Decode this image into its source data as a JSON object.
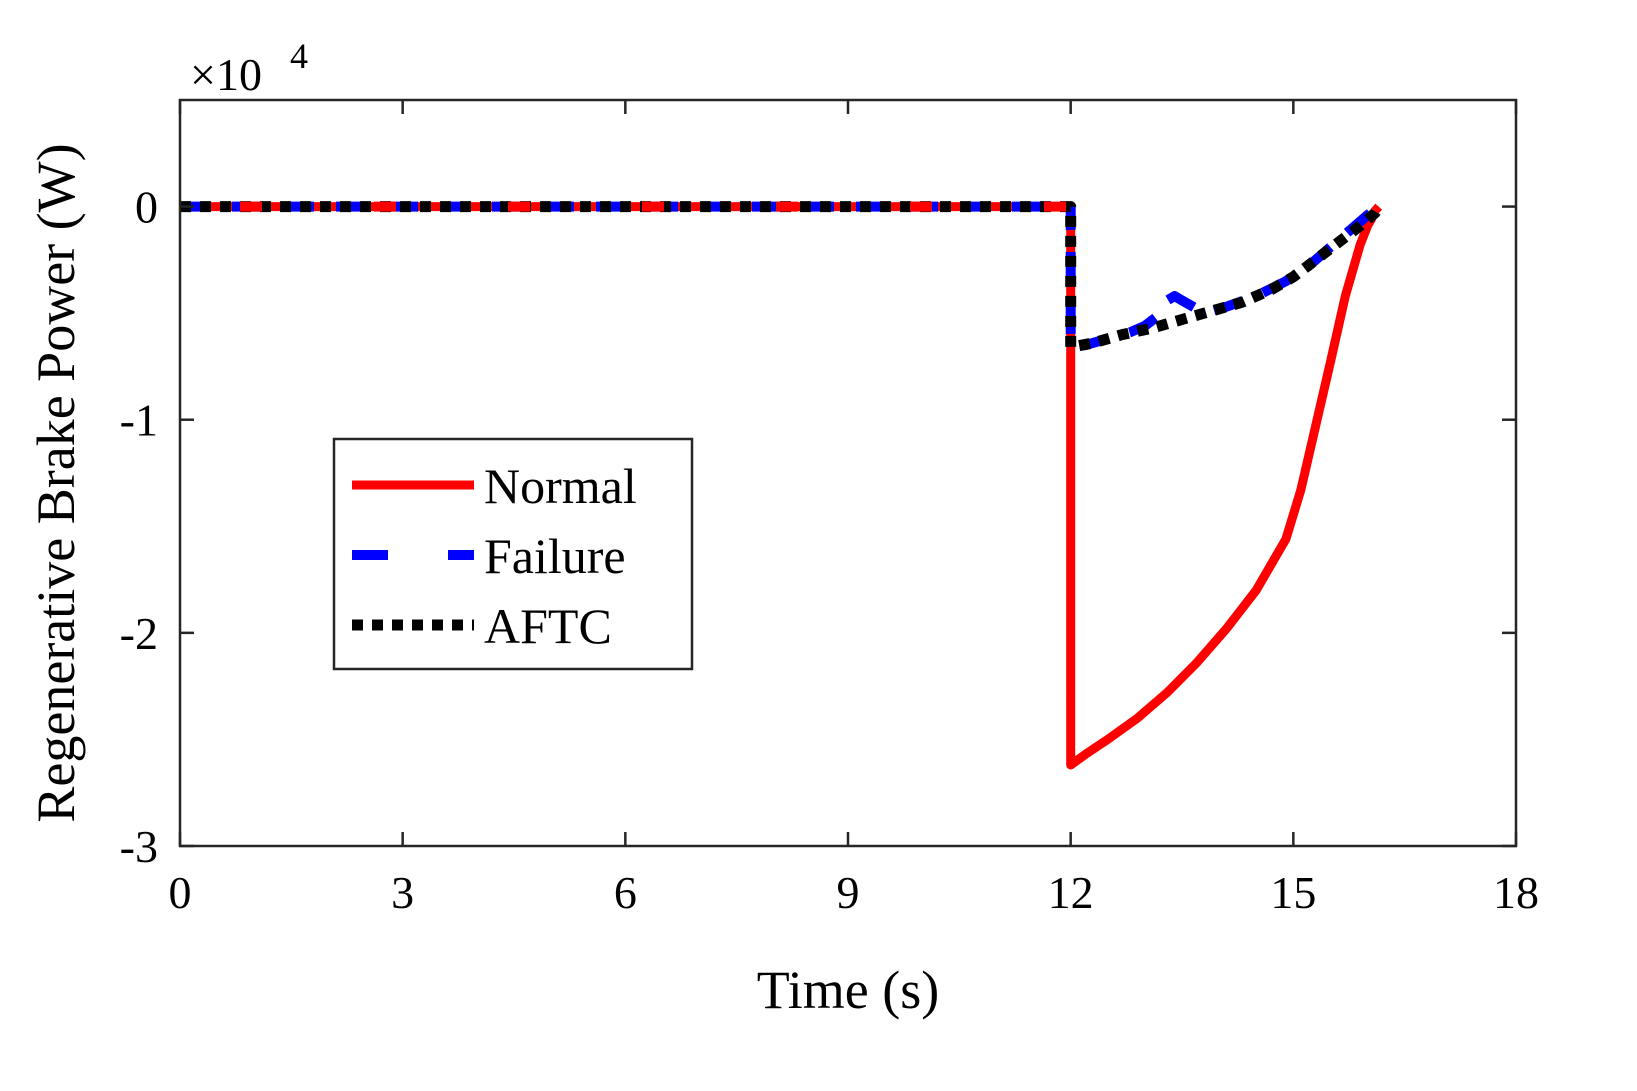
{
  "chart_data": {
    "type": "line",
    "title": "",
    "xlabel": "Time (s)",
    "ylabel": "Regenerative Brake Power (W)",
    "xlim": [
      0,
      18
    ],
    "ylim": [
      -3,
      0.5
    ],
    "y_multiplier_label": "×10",
    "y_multiplier_exponent": "4",
    "xticks": [
      0,
      3,
      6,
      9,
      12,
      15,
      18
    ],
    "xtick_labels": [
      "0",
      "3",
      "6",
      "9",
      "12",
      "15",
      "18"
    ],
    "yticks": [
      0,
      -1,
      -2,
      -3
    ],
    "ytick_labels": [
      "0",
      "-1",
      "-2",
      "-3"
    ],
    "legend_position": "left-center",
    "series": [
      {
        "name": "Normal",
        "color": "#ff0000",
        "style": "solid",
        "points": [
          [
            0,
            0
          ],
          [
            12.0,
            0
          ],
          [
            12.0,
            -2.62
          ],
          [
            12.2,
            -2.57
          ],
          [
            12.5,
            -2.5
          ],
          [
            12.9,
            -2.4
          ],
          [
            13.3,
            -2.28
          ],
          [
            13.7,
            -2.14
          ],
          [
            14.1,
            -1.98
          ],
          [
            14.5,
            -1.8
          ],
          [
            14.9,
            -1.56
          ],
          [
            15.1,
            -1.33
          ],
          [
            15.3,
            -1.03
          ],
          [
            15.5,
            -0.73
          ],
          [
            15.7,
            -0.42
          ],
          [
            15.9,
            -0.18
          ],
          [
            16.0,
            -0.09
          ],
          [
            16.05,
            -0.06
          ],
          [
            16.1,
            -0.02
          ],
          [
            16.15,
            0
          ]
        ]
      },
      {
        "name": "Failure",
        "color": "#0000ff",
        "style": "dashed",
        "points": [
          [
            0,
            0
          ],
          [
            12.0,
            0
          ],
          [
            12.0,
            -0.66
          ],
          [
            12.2,
            -0.65
          ],
          [
            12.5,
            -0.62
          ],
          [
            12.8,
            -0.59
          ],
          [
            13.0,
            -0.56
          ],
          [
            13.15,
            -0.52
          ],
          [
            13.3,
            -0.44
          ],
          [
            13.4,
            -0.42
          ],
          [
            13.5,
            -0.44
          ],
          [
            13.8,
            -0.5
          ],
          [
            14.1,
            -0.47
          ],
          [
            14.5,
            -0.42
          ],
          [
            14.9,
            -0.35
          ],
          [
            15.2,
            -0.28
          ],
          [
            15.5,
            -0.19
          ],
          [
            15.8,
            -0.1
          ],
          [
            16.0,
            -0.04
          ],
          [
            16.15,
            0
          ]
        ]
      },
      {
        "name": "AFTC",
        "color": "#000000",
        "style": "dotted",
        "points": [
          [
            0,
            0
          ],
          [
            12.0,
            0
          ],
          [
            12.0,
            -0.66
          ],
          [
            12.3,
            -0.64
          ],
          [
            12.7,
            -0.6
          ],
          [
            13.1,
            -0.57
          ],
          [
            13.5,
            -0.53
          ],
          [
            13.9,
            -0.49
          ],
          [
            14.3,
            -0.45
          ],
          [
            14.7,
            -0.39
          ],
          [
            15.0,
            -0.33
          ],
          [
            15.3,
            -0.25
          ],
          [
            15.6,
            -0.17
          ],
          [
            15.9,
            -0.09
          ],
          [
            16.1,
            -0.03
          ],
          [
            16.15,
            0
          ]
        ]
      }
    ]
  }
}
